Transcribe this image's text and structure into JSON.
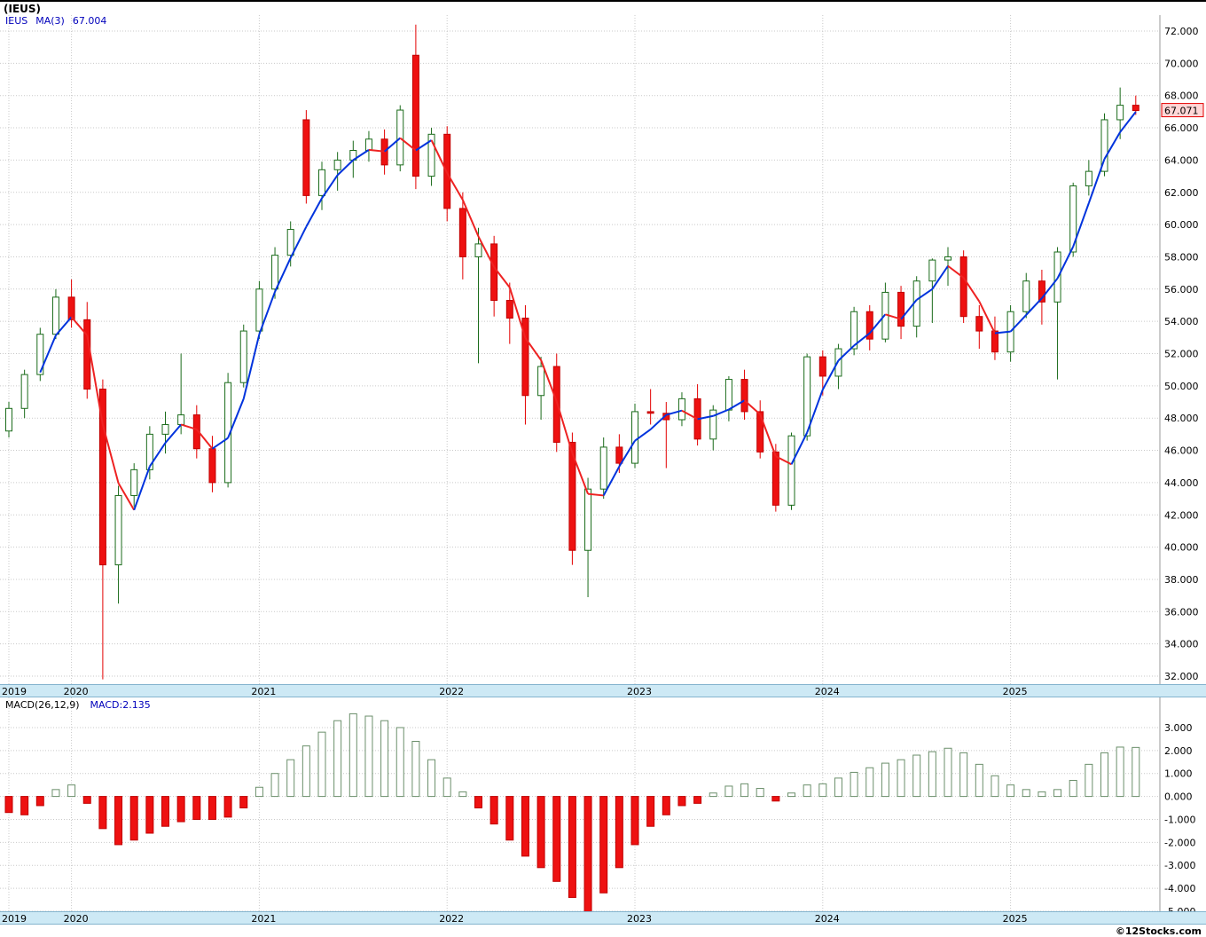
{
  "header": {
    "title": "(IEUS)",
    "symbol": "IEUS",
    "ma_label": "MA(3)",
    "ma_value": "67.004"
  },
  "macd_panel": {
    "legend_label": "MACD(26,12,9)",
    "legend_value": "MACD:2.135"
  },
  "footer": {
    "watermark": "©12Stocks.com"
  },
  "colors": {
    "up_outline": "#1a6b1a",
    "down_fill": "#ee1111",
    "ma_up": "#0033dd",
    "ma_down": "#ee2222",
    "legend_blue": "#0000bb",
    "band_blue": "#cde9f5",
    "grid": "#c9c9c9",
    "badge_bg": "#ffd6d6",
    "badge_border": "#e30000"
  },
  "axes": {
    "price_ticks": [
      "72.000",
      "70.000",
      "68.000",
      "66.000",
      "64.000",
      "62.000",
      "60.000",
      "58.000",
      "56.000",
      "54.000",
      "52.000",
      "50.000",
      "48.000",
      "46.000",
      "44.000",
      "42.000",
      "40.000",
      "38.000",
      "36.000",
      "34.000",
      "32.000"
    ],
    "macd_ticks": [
      "3.000",
      "2.000",
      "1.000",
      "0.000",
      "-1.000",
      "-2.000",
      "-3.000",
      "-4.000",
      "-5.000"
    ],
    "years": [
      {
        "label": "2019",
        "index": 0
      },
      {
        "label": "2020",
        "index": 4
      },
      {
        "label": "2021",
        "index": 16
      },
      {
        "label": "2022",
        "index": 28
      },
      {
        "label": "2023",
        "index": 40
      },
      {
        "label": "2024",
        "index": 52
      },
      {
        "label": "2025",
        "index": 64
      }
    ]
  },
  "chart_data": {
    "type": "candlestick",
    "title": "(IEUS)",
    "symbol": "IEUS",
    "interval": "monthly",
    "grid": true,
    "legend_position": "top-left",
    "ylim": [
      32,
      72
    ],
    "ytick_step": 2,
    "last_close": 67.071,
    "last_close_label": "67.071",
    "x": [
      "2019-09",
      "2019-10",
      "2019-11",
      "2019-12",
      "2020-01",
      "2020-02",
      "2020-03",
      "2020-04",
      "2020-05",
      "2020-06",
      "2020-07",
      "2020-08",
      "2020-09",
      "2020-10",
      "2020-11",
      "2020-12",
      "2021-01",
      "2021-02",
      "2021-03",
      "2021-04",
      "2021-05",
      "2021-06",
      "2021-07",
      "2021-08",
      "2021-09",
      "2021-10",
      "2021-11",
      "2021-12",
      "2022-01",
      "2022-02",
      "2022-03",
      "2022-04",
      "2022-05",
      "2022-06",
      "2022-07",
      "2022-08",
      "2022-09",
      "2022-10",
      "2022-11",
      "2022-12",
      "2023-01",
      "2023-02",
      "2023-03",
      "2023-04",
      "2023-05",
      "2023-06",
      "2023-07",
      "2023-08",
      "2023-09",
      "2023-10",
      "2023-11",
      "2023-12",
      "2024-01",
      "2024-02",
      "2024-03",
      "2024-04",
      "2024-05",
      "2024-06",
      "2024-07",
      "2024-08",
      "2024-09",
      "2024-10",
      "2024-11",
      "2024-12",
      "2025-01",
      "2025-02",
      "2025-03",
      "2025-04",
      "2025-05",
      "2025-06",
      "2025-07",
      "2025-08",
      "2025-09"
    ],
    "ohlc": [
      [
        47.2,
        49.0,
        46.8,
        48.6
      ],
      [
        48.6,
        51.0,
        48.0,
        50.7
      ],
      [
        50.7,
        53.6,
        50.3,
        53.2
      ],
      [
        53.2,
        56.0,
        52.9,
        55.5
      ],
      [
        55.5,
        56.6,
        53.6,
        54.1
      ],
      [
        54.1,
        55.2,
        49.2,
        49.8
      ],
      [
        49.8,
        50.4,
        31.8,
        38.9
      ],
      [
        38.9,
        43.8,
        36.5,
        43.2
      ],
      [
        43.2,
        45.2,
        42.5,
        44.8
      ],
      [
        44.8,
        47.5,
        44.2,
        47.0
      ],
      [
        47.0,
        48.4,
        45.8,
        47.6
      ],
      [
        47.6,
        52.0,
        47.0,
        48.2
      ],
      [
        48.2,
        48.8,
        45.5,
        46.1
      ],
      [
        46.1,
        46.9,
        43.4,
        44.0
      ],
      [
        44.0,
        50.8,
        43.7,
        50.2
      ],
      [
        50.2,
        53.8,
        49.9,
        53.4
      ],
      [
        53.4,
        56.5,
        52.9,
        56.0
      ],
      [
        56.0,
        58.6,
        55.4,
        58.1
      ],
      [
        58.1,
        60.2,
        57.4,
        59.7
      ],
      [
        66.5,
        67.1,
        61.3,
        61.8
      ],
      [
        61.8,
        63.9,
        60.9,
        63.4
      ],
      [
        63.4,
        64.5,
        62.1,
        64.0
      ],
      [
        64.0,
        65.2,
        62.9,
        64.6
      ],
      [
        64.6,
        65.8,
        63.9,
        65.3
      ],
      [
        65.3,
        65.9,
        63.1,
        63.7
      ],
      [
        63.7,
        67.4,
        63.3,
        67.1
      ],
      [
        70.5,
        72.4,
        62.2,
        63.0
      ],
      [
        63.0,
        66.0,
        62.4,
        65.6
      ],
      [
        65.6,
        66.1,
        60.2,
        61.0
      ],
      [
        61.0,
        62.0,
        56.6,
        58.0
      ],
      [
        58.0,
        59.8,
        51.4,
        58.8
      ],
      [
        58.8,
        59.3,
        54.3,
        55.3
      ],
      [
        55.3,
        56.4,
        52.6,
        54.2
      ],
      [
        54.2,
        55.0,
        47.6,
        49.4
      ],
      [
        49.4,
        51.8,
        47.9,
        51.2
      ],
      [
        51.2,
        52.0,
        45.9,
        46.5
      ],
      [
        46.5,
        47.1,
        38.9,
        39.8
      ],
      [
        39.8,
        44.3,
        36.9,
        43.6
      ],
      [
        43.6,
        46.8,
        43.0,
        46.2
      ],
      [
        46.2,
        47.0,
        44.6,
        45.2
      ],
      [
        45.2,
        48.9,
        44.9,
        48.4
      ],
      [
        48.4,
        49.8,
        47.6,
        48.3
      ],
      [
        48.3,
        49.0,
        44.9,
        47.9
      ],
      [
        47.9,
        49.6,
        47.5,
        49.2
      ],
      [
        49.2,
        50.1,
        46.3,
        46.7
      ],
      [
        46.7,
        48.8,
        46.0,
        48.5
      ],
      [
        48.5,
        50.6,
        47.8,
        50.4
      ],
      [
        50.4,
        51.0,
        47.9,
        48.4
      ],
      [
        48.4,
        49.1,
        45.5,
        45.9
      ],
      [
        45.9,
        46.4,
        42.2,
        42.6
      ],
      [
        42.6,
        47.1,
        42.3,
        46.9
      ],
      [
        46.9,
        52.0,
        46.6,
        51.8
      ],
      [
        51.8,
        52.2,
        49.4,
        50.6
      ],
      [
        50.6,
        52.6,
        49.8,
        52.3
      ],
      [
        52.3,
        54.9,
        51.9,
        54.6
      ],
      [
        54.6,
        55.0,
        52.2,
        52.9
      ],
      [
        52.9,
        56.4,
        52.7,
        55.8
      ],
      [
        55.8,
        56.2,
        52.9,
        53.7
      ],
      [
        53.7,
        56.8,
        53.0,
        56.5
      ],
      [
        56.5,
        57.9,
        53.9,
        57.8
      ],
      [
        57.8,
        58.6,
        56.2,
        58.0
      ],
      [
        58.0,
        58.4,
        53.9,
        54.3
      ],
      [
        54.3,
        55.0,
        52.3,
        53.4
      ],
      [
        53.4,
        54.3,
        51.6,
        52.1
      ],
      [
        52.1,
        55.0,
        51.5,
        54.6
      ],
      [
        54.6,
        57.0,
        54.2,
        56.5
      ],
      [
        56.5,
        57.2,
        53.8,
        55.2
      ],
      [
        55.2,
        58.6,
        50.4,
        58.3
      ],
      [
        58.3,
        62.6,
        58.0,
        62.4
      ],
      [
        62.4,
        64.0,
        61.8,
        63.3
      ],
      [
        63.3,
        66.9,
        63.0,
        66.5
      ],
      [
        66.5,
        68.5,
        65.3,
        67.4
      ],
      [
        67.4,
        68.0,
        66.8,
        67.071
      ]
    ],
    "overlays": [
      {
        "name": "MA(3)",
        "window": 3,
        "last_value": 67.004,
        "style": "blue-rising-red-falling"
      }
    ],
    "subcharts": [
      {
        "type": "bar",
        "name": "MACD(26,12,9)",
        "last_value": 2.135,
        "ylim": [
          -5,
          3
        ],
        "ytick_step": 1,
        "values": [
          -0.7,
          -0.8,
          -0.4,
          0.3,
          0.5,
          -0.3,
          -1.4,
          -2.1,
          -1.9,
          -1.6,
          -1.3,
          -1.1,
          -1.0,
          -1.0,
          -0.9,
          -0.5,
          0.4,
          1.0,
          1.6,
          2.2,
          2.8,
          3.3,
          3.6,
          3.5,
          3.3,
          3.0,
          2.4,
          1.6,
          0.8,
          0.2,
          -0.5,
          -1.2,
          -1.9,
          -2.6,
          -3.1,
          -3.7,
          -4.4,
          -5.05,
          -4.2,
          -3.1,
          -2.1,
          -1.3,
          -0.8,
          -0.4,
          -0.3,
          0.15,
          0.45,
          0.55,
          0.35,
          -0.2,
          0.15,
          0.5,
          0.55,
          0.8,
          1.05,
          1.25,
          1.45,
          1.6,
          1.8,
          1.95,
          2.1,
          1.9,
          1.4,
          0.9,
          0.5,
          0.3,
          0.2,
          0.3,
          0.7,
          1.4,
          1.9,
          2.15,
          2.135
        ]
      }
    ],
    "x_axis_years": [
      "2019",
      "2020",
      "2021",
      "2022",
      "2023",
      "2024",
      "2025"
    ]
  }
}
